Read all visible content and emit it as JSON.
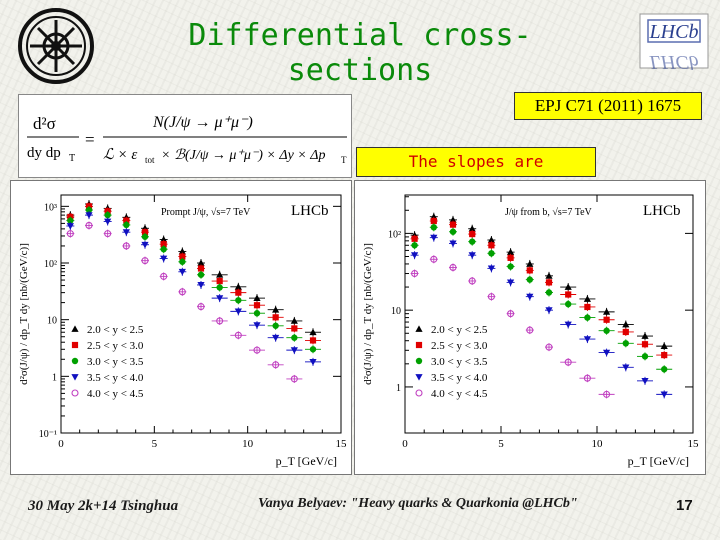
{
  "slide": {
    "title": "Differential cross-sections",
    "reference": "EPJ C71 (2011) 1675",
    "callout": "The slopes are different!",
    "footer_date": "30 May 2k+14 Tsinghua",
    "footer_author": "Vanya Belyaev: \"Heavy quarks & Quarkonia @LHCb\"",
    "page_number": "17",
    "logo_right_text": "LHCb",
    "colors": {
      "title": "#0a8a0a",
      "callout_text": "#d00000",
      "highlight": "#ffff00"
    }
  },
  "formula": {
    "lhs_num": "d²σ",
    "lhs_den": "dy dp",
    "lhs_den_sub": "T",
    "num": "N(J/ψ → μ⁺μ⁻)",
    "den_a": "ℒ × ε",
    "den_a_sub": "tot",
    "den_b": "× ℬ(J/ψ → μ⁺μ⁻) × Δy × Δp",
    "den_b_sub": "T",
    "equals": "="
  },
  "chart_data": [
    {
      "type": "scatter",
      "title": "Prompt J/ψ, √s=7 TeV",
      "brand": "LHCb",
      "xlabel": "p_T [GeV/c]",
      "ylabel": "d²σ(J/ψ) / dp_T dy [nb/(GeV/c)]",
      "xlim": [
        0,
        15
      ],
      "ylim_log10": [
        -1,
        3.2
      ],
      "x_ticks": [
        "0",
        "5",
        "10",
        "15"
      ],
      "y_ticks": [
        "10⁻¹",
        "1",
        "10",
        "10²",
        "10³"
      ],
      "y_tick_values": [
        0.1,
        1,
        10,
        100,
        1000
      ],
      "legend_position": "bottom-left",
      "series": [
        {
          "name": "2.0 < y < 2.5",
          "color": "#000000",
          "marker": "triangle-up",
          "x": [
            0.5,
            1.5,
            2.5,
            3.5,
            4.5,
            5.5,
            6.5,
            7.5,
            8.5,
            9.5,
            10.5,
            11.5,
            12.5,
            13.5
          ],
          "y": [
            700,
            1100,
            920,
            640,
            410,
            260,
            160,
            100,
            62,
            38,
            24,
            15,
            9.5,
            6
          ]
        },
        {
          "name": "2.5 < y < 3.0",
          "color": "#e00000",
          "marker": "square",
          "x": [
            0.5,
            1.5,
            2.5,
            3.5,
            4.5,
            5.5,
            6.5,
            7.5,
            8.5,
            9.5,
            10.5,
            11.5,
            12.5,
            13.5
          ],
          "y": [
            650,
            1000,
            820,
            560,
            350,
            215,
            130,
            80,
            48,
            30,
            18,
            11,
            7,
            4.3
          ]
        },
        {
          "name": "3.0 < y < 3.5",
          "color": "#00a000",
          "marker": "circle",
          "x": [
            0.5,
            1.5,
            2.5,
            3.5,
            4.5,
            5.5,
            6.5,
            7.5,
            8.5,
            9.5,
            10.5,
            11.5,
            12.5,
            13.5
          ],
          "y": [
            560,
            860,
            700,
            470,
            290,
            175,
            105,
            62,
            37,
            22,
            13,
            7.8,
            4.8,
            3
          ]
        },
        {
          "name": "3.5 < y < 4.0",
          "color": "#1010c0",
          "marker": "triangle-down",
          "x": [
            0.5,
            1.5,
            2.5,
            3.5,
            4.5,
            5.5,
            6.5,
            7.5,
            8.5,
            9.5,
            10.5,
            11.5,
            12.5,
            13.5
          ],
          "y": [
            450,
            700,
            540,
            350,
            210,
            120,
            70,
            41,
            24,
            14,
            8,
            4.8,
            2.9,
            1.8
          ]
        },
        {
          "name": "4.0 < y < 4.5",
          "color": "#c040c0",
          "marker": "open-circle",
          "x": [
            0.5,
            1.5,
            2.5,
            3.5,
            4.5,
            5.5,
            6.5,
            7.5,
            8.5,
            9.5,
            10.5,
            11.5,
            12.5
          ],
          "y": [
            330,
            460,
            330,
            200,
            110,
            58,
            31,
            17,
            9.5,
            5.3,
            2.9,
            1.6,
            0.9
          ]
        }
      ]
    },
    {
      "type": "scatter",
      "title": "J/ψ from b, √s=7 TeV",
      "brand": "LHCb",
      "xlabel": "p_T [GeV/c]",
      "ylabel": "d²σ(J/ψ) / dp_T dy [nb/(GeV/c)]",
      "xlim": [
        0,
        15
      ],
      "ylim_log10": [
        -0.6,
        2.5
      ],
      "x_ticks": [
        "0",
        "5",
        "10",
        "15"
      ],
      "y_ticks": [
        "1",
        "10",
        "10²"
      ],
      "y_tick_values": [
        1,
        10,
        100
      ],
      "legend_position": "bottom-left",
      "series": [
        {
          "name": "2.0 < y < 2.5",
          "color": "#000000",
          "marker": "triangle-up",
          "x": [
            0.5,
            1.5,
            2.5,
            3.5,
            4.5,
            5.5,
            6.5,
            7.5,
            8.5,
            9.5,
            10.5,
            11.5,
            12.5,
            13.5
          ],
          "y": [
            95,
            165,
            150,
            115,
            82,
            57,
            40,
            28,
            20,
            14,
            9.5,
            6.5,
            4.6,
            3.4
          ]
        },
        {
          "name": "2.5 < y < 3.0",
          "color": "#e00000",
          "marker": "square",
          "x": [
            0.5,
            1.5,
            2.5,
            3.5,
            4.5,
            5.5,
            6.5,
            7.5,
            8.5,
            9.5,
            10.5,
            11.5,
            12.5,
            13.5
          ],
          "y": [
            85,
            145,
            130,
            98,
            70,
            48,
            33,
            23,
            16,
            11,
            7.5,
            5.2,
            3.6,
            2.6
          ]
        },
        {
          "name": "3.0 < y < 3.5",
          "color": "#00a000",
          "marker": "circle",
          "x": [
            0.5,
            1.5,
            2.5,
            3.5,
            4.5,
            5.5,
            6.5,
            7.5,
            8.5,
            9.5,
            10.5,
            11.5,
            12.5,
            13.5
          ],
          "y": [
            70,
            120,
            105,
            78,
            55,
            37,
            25,
            17,
            12,
            8,
            5.4,
            3.7,
            2.5,
            1.7
          ]
        },
        {
          "name": "3.5 < y < 4.0",
          "color": "#1010c0",
          "marker": "triangle-down",
          "x": [
            0.5,
            1.5,
            2.5,
            3.5,
            4.5,
            5.5,
            6.5,
            7.5,
            8.5,
            9.5,
            10.5,
            11.5,
            12.5,
            13.5
          ],
          "y": [
            52,
            88,
            74,
            52,
            35,
            23,
            15,
            10,
            6.5,
            4.2,
            2.8,
            1.8,
            1.2,
            0.8
          ]
        },
        {
          "name": "4.0 < y < 4.5",
          "color": "#c040c0",
          "marker": "open-circle",
          "x": [
            0.5,
            1.5,
            2.5,
            3.5,
            4.5,
            5.5,
            6.5,
            7.5,
            8.5,
            9.5,
            10.5
          ],
          "y": [
            30,
            46,
            36,
            24,
            15,
            9,
            5.5,
            3.3,
            2.1,
            1.3,
            0.8
          ]
        }
      ]
    }
  ]
}
